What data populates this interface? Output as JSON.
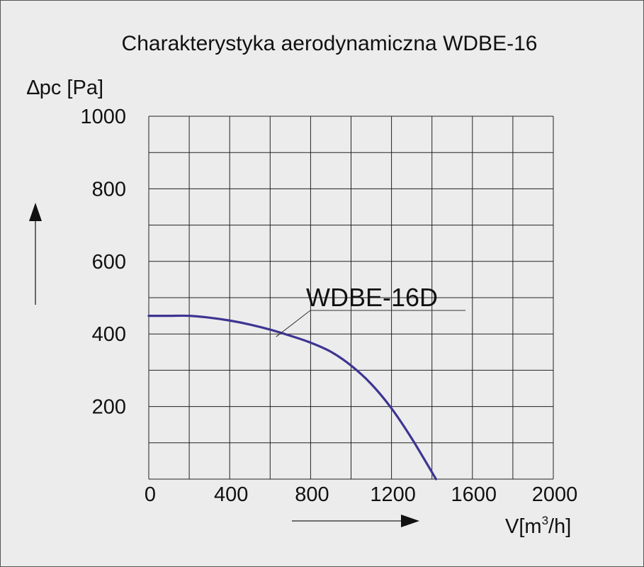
{
  "chart_data": {
    "type": "line",
    "title": "Charakterystyka aerodynamiczna WDBE-16",
    "ylabel": "∆pc [Pa]",
    "xlabel_main": "V[m",
    "xlabel_sup": "3",
    "xlabel_tail": "/h]",
    "xlim": [
      0,
      2000
    ],
    "ylim": [
      0,
      1000
    ],
    "x_ticks": [
      0,
      400,
      800,
      1200,
      1600,
      2000
    ],
    "y_ticks": [
      200,
      400,
      600,
      800,
      1000
    ],
    "x_grid_step": 200,
    "y_grid_step": 100,
    "grid": true,
    "line_color": "#3d3592",
    "series": [
      {
        "name": "WDBE-16D",
        "x": [
          0,
          100,
          200,
          300,
          400,
          500,
          600,
          700,
          800,
          900,
          1000,
          1100,
          1200,
          1300,
          1420
        ],
        "y": [
          450,
          450,
          450,
          445,
          437,
          426,
          412,
          395,
          376,
          351,
          313,
          262,
          195,
          112,
          0
        ]
      }
    ],
    "annotation": {
      "text": "WDBE-16D",
      "point": [
        640,
        400
      ]
    }
  }
}
